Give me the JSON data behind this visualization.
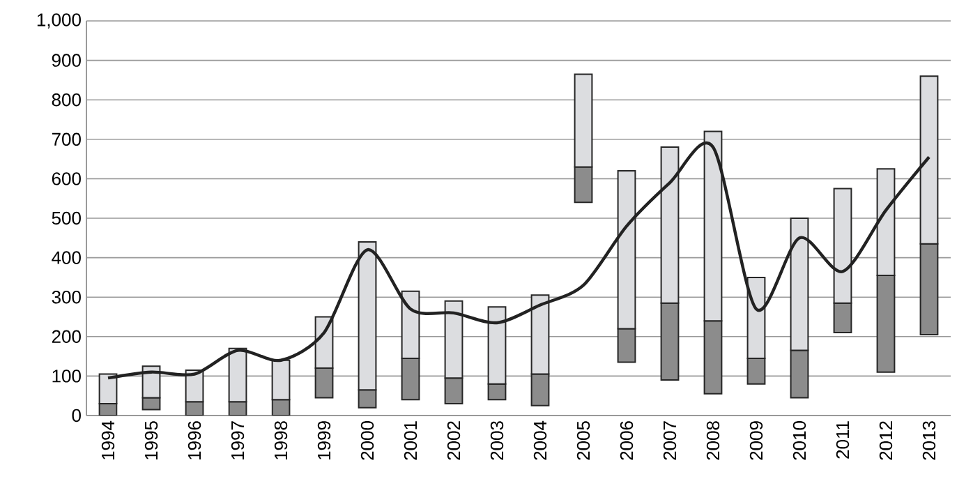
{
  "chart_data": {
    "type": "bar",
    "categories": [
      "1994",
      "1995",
      "1996",
      "1997",
      "1998",
      "1999",
      "2000",
      "2001",
      "2002",
      "2003",
      "2004",
      "2005",
      "2006",
      "2007",
      "2008",
      "2009",
      "2010",
      "2011",
      "2012",
      "2013"
    ],
    "series": [
      {
        "color": "#8c8c8c",
        "base": [
          0,
          15,
          0,
          0,
          0,
          45,
          20,
          40,
          30,
          40,
          25,
          540,
          135,
          90,
          55,
          80,
          45,
          210,
          110,
          205
        ],
        "values": [
          30,
          30,
          35,
          35,
          40,
          75,
          45,
          105,
          65,
          40,
          80,
          90,
          85,
          195,
          185,
          65,
          120,
          75,
          245,
          230
        ]
      },
      {
        "color": "#dcdde0",
        "base": [
          30,
          45,
          35,
          35,
          40,
          120,
          65,
          145,
          95,
          80,
          105,
          630,
          220,
          285,
          240,
          145,
          165,
          285,
          355,
          435
        ],
        "values": [
          75,
          80,
          80,
          135,
          100,
          130,
          375,
          170,
          195,
          195,
          200,
          235,
          400,
          395,
          480,
          205,
          335,
          290,
          270,
          425
        ]
      },
      {
        "type": "line",
        "color": "#222222",
        "values": [
          95,
          110,
          105,
          165,
          140,
          210,
          420,
          270,
          260,
          235,
          280,
          330,
          480,
          590,
          680,
          270,
          450,
          365,
          520,
          655
        ]
      }
    ],
    "ylim": [
      0,
      1000
    ],
    "yticks": [
      0,
      100,
      200,
      300,
      400,
      500,
      600,
      700,
      800,
      900,
      {
        "value": 1000,
        "label": "1,000"
      }
    ],
    "grid": "y"
  }
}
